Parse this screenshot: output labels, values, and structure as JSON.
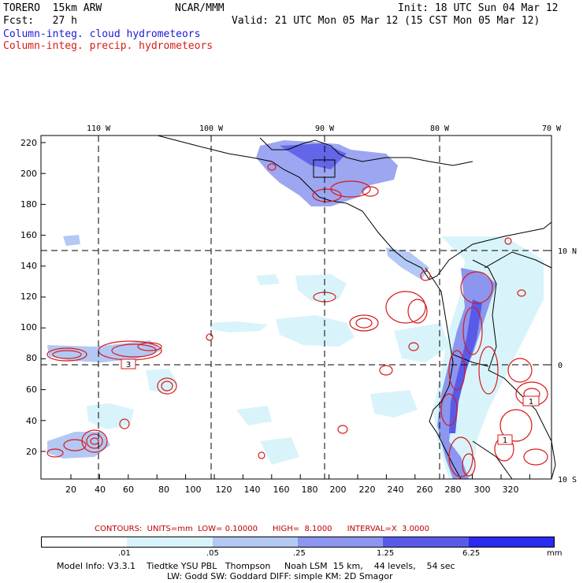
{
  "header": {
    "model": "TORERO  15km ARW",
    "org": "NCAR/MMM",
    "init": "Init: 18 UTC Sun 04 Mar 12",
    "fcst": "Fcst:   27 h",
    "valid": "Valid: 21 UTC Mon 05 Mar 12 (15 CST Mon 05 Mar 12)",
    "field1": "Column-integ. cloud hydrometeors",
    "field2": "Column-integ. precip. hydrometeors"
  },
  "colors": {
    "cloud": "#1a1ad6",
    "precip": "#d81a1a"
  },
  "axes": {
    "top_lon": [
      "110 W",
      "100 W",
      "90 W",
      "80 W",
      "70 W"
    ],
    "right_lat": [
      "10 N",
      "0",
      "10 S"
    ],
    "left_y": [
      "20",
      "40",
      "60",
      "80",
      "100",
      "120",
      "140",
      "160",
      "180",
      "200",
      "220"
    ],
    "bottom_x": [
      "20",
      "40",
      "60",
      "80",
      "100",
      "120",
      "140",
      "160",
      "180",
      "200",
      "220",
      "240",
      "260",
      "280",
      "300",
      "320"
    ]
  },
  "contour_labels": [
    "3",
    "1",
    "1"
  ],
  "legend": {
    "contours_text": "CONTOURS:  UNITS=mm  LOW= 0.10000      HIGH=  8.1000      INTERVAL=X  3.0000",
    "ticks": [
      ".01",
      ".05",
      ".25",
      "1.25",
      "6.25",
      "mm"
    ],
    "bin_colors": [
      "#ffffff",
      "#d8f4fa",
      "#b4c8f4",
      "#8c96ee",
      "#5a5ae8",
      "#2a2af0"
    ]
  },
  "footer": {
    "line1": "Model Info: V3.3.1    Tiedtke YSU PBL   Thompson     Noah LSM  15 km,    44 levels,    54 sec",
    "line2": "LW: Godd SW: Goddard DIFF: simple KM: 2D Smagor"
  }
}
